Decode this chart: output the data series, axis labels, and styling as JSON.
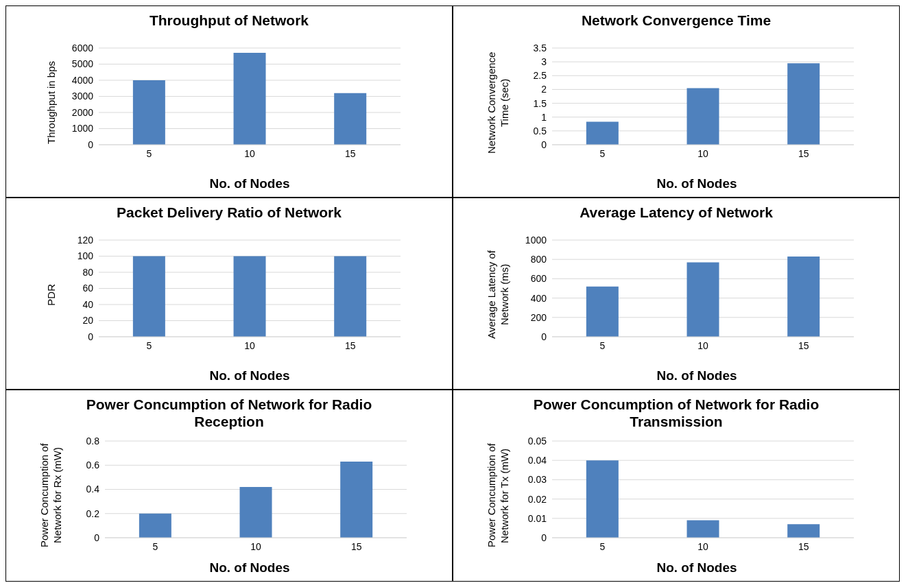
{
  "chart_data": [
    {
      "type": "bar",
      "title": "Throughput of Network",
      "xlabel": "No. of Nodes",
      "ylabel": "Throughput in bps",
      "categories": [
        "5",
        "10",
        "15"
      ],
      "values": [
        4000,
        5700,
        3200
      ],
      "color": "#4f81bd",
      "ylim": [
        0,
        6000
      ],
      "yticks": [
        0,
        1000,
        2000,
        3000,
        4000,
        5000,
        6000
      ],
      "grid": "y"
    },
    {
      "type": "bar",
      "title": "Network Convergence Time",
      "xlabel": "No. of Nodes",
      "ylabel": "Network Convergence Time (sec)",
      "categories": [
        "5",
        "10",
        "15"
      ],
      "values": [
        0.83,
        2.05,
        2.95
      ],
      "color": "#4f81bd",
      "ylim": [
        0,
        3.5
      ],
      "yticks": [
        0,
        0.5,
        1,
        1.5,
        2,
        2.5,
        3,
        3.5
      ],
      "grid": "y"
    },
    {
      "type": "bar",
      "title": "Packet Delivery Ratio of Network",
      "xlabel": "No. of Nodes",
      "ylabel": "PDR",
      "categories": [
        "5",
        "10",
        "15"
      ],
      "values": [
        100,
        100,
        100
      ],
      "color": "#4f81bd",
      "ylim": [
        0,
        120
      ],
      "yticks": [
        0,
        20,
        40,
        60,
        80,
        100,
        120
      ],
      "grid": "y"
    },
    {
      "type": "bar",
      "title": "Average Latency of Network",
      "xlabel": "No. of Nodes",
      "ylabel": "Average Latency of Network (ms)",
      "categories": [
        "5",
        "10",
        "15"
      ],
      "values": [
        520,
        770,
        830
      ],
      "color": "#4f81bd",
      "ylim": [
        0,
        1000
      ],
      "yticks": [
        0,
        200,
        400,
        600,
        800,
        1000
      ],
      "grid": "y"
    },
    {
      "type": "bar",
      "title": "Power Concumption of Network for Radio Reception",
      "xlabel": "No. of Nodes",
      "ylabel": "Power Concumption of Network for Rx (mW)",
      "categories": [
        "5",
        "10",
        "15"
      ],
      "values": [
        0.2,
        0.42,
        0.63
      ],
      "color": "#4f81bd",
      "ylim": [
        0,
        0.8
      ],
      "yticks": [
        0,
        0.2,
        0.4,
        0.6,
        0.8
      ],
      "grid": "y"
    },
    {
      "type": "bar",
      "title": "Power Concumption of Network for Radio Transmission",
      "xlabel": "No. of Nodes",
      "ylabel": "Power Concumption of Network for Tx (mW)",
      "categories": [
        "5",
        "10",
        "15"
      ],
      "values": [
        0.04,
        0.009,
        0.007
      ],
      "color": "#4f81bd",
      "ylim": [
        0,
        0.05
      ],
      "yticks": [
        0,
        0.01,
        0.02,
        0.03,
        0.04,
        0.05
      ],
      "grid": "y"
    }
  ]
}
